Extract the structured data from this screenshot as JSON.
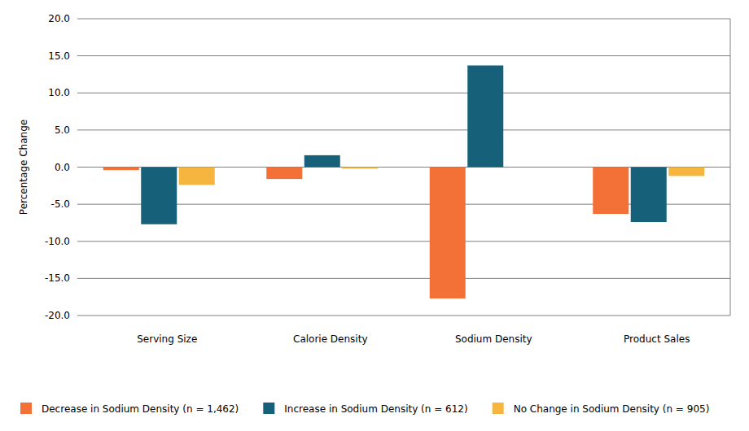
{
  "chart_data": {
    "type": "bar",
    "y_label": "Percentage Change",
    "categories": [
      "Serving Size",
      "Calorie Density",
      "Sodium Density",
      "Product Sales"
    ],
    "series": [
      {
        "name": "Decrease in Sodium Density (n = 1,462)",
        "color": "#f37036",
        "values": [
          -0.4,
          -1.6,
          -17.7,
          -6.3
        ]
      },
      {
        "name": "Increase in Sodium Density (n = 612)",
        "color": "#17607a",
        "values": [
          -7.7,
          1.6,
          13.7,
          -7.4
        ]
      },
      {
        "name": "No Change in Sodium Density (n = 905)",
        "color": "#f5b53f",
        "values": [
          -2.4,
          -0.2,
          0,
          -1.2
        ]
      }
    ],
    "ylim": [
      -20,
      20
    ],
    "yticks": [
      {
        "value": -20,
        "label": "-20.0"
      },
      {
        "value": -15,
        "label": "-15.0"
      },
      {
        "value": -10,
        "label": "-10.0"
      },
      {
        "value": -5,
        "label": "-5.0"
      },
      {
        "value": 0,
        "label": "0.0"
      },
      {
        "value": 5,
        "label": "5.0"
      },
      {
        "value": 10,
        "label": "10.0"
      },
      {
        "value": 15,
        "label": "15.0"
      },
      {
        "value": 20,
        "label": "20.0"
      }
    ],
    "grid": true,
    "legend": "bottom"
  }
}
